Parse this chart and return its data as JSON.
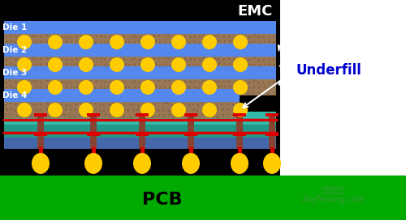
{
  "fig_width": 5.0,
  "fig_height": 2.72,
  "dpi": 100,
  "bg_color": "#000000",
  "pcb_board_color": "#00aa00",
  "pcb_label": "PCB",
  "pcb_label_color": "#000000",
  "emc_label": "EMC",
  "underfill_label": "Underfill",
  "die_labels": [
    "Die 1",
    "Die 2",
    "Die 3",
    "Die 4"
  ],
  "die_color": "#5588ee",
  "underfill_color": "#997755",
  "bump_color": "#ffcc00",
  "solder_color": "#dd0000",
  "post_color": "#884433",
  "interposer_top_color": "#33bbaa",
  "interposer_mid_color": "#229988",
  "interposer_bot_color": "#4466aa",
  "watermark": "嘉峡检测网",
  "watermark2": "AnyTesting.com"
}
